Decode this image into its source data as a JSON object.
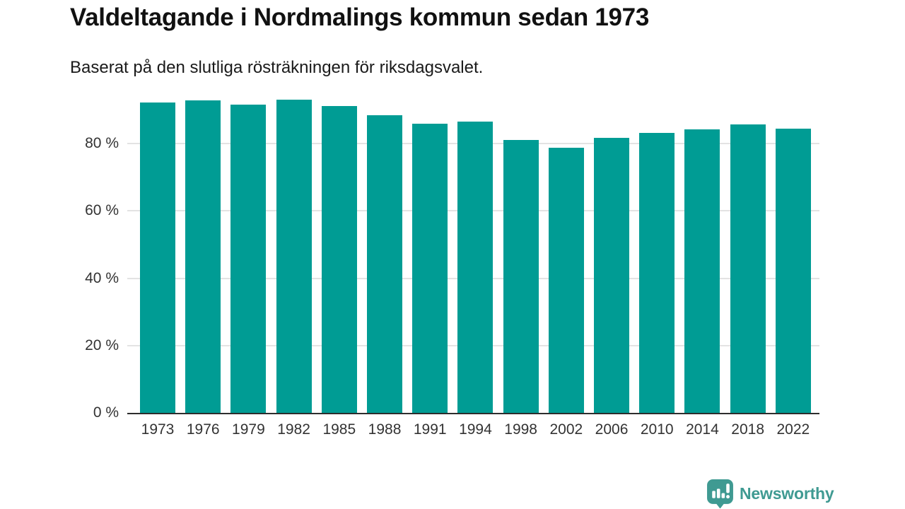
{
  "header": {
    "title": "Valdeltagande i Nordmalings kommun sedan 1973",
    "subtitle": "Baserat på den slutliga rösträkningen för riksdagsvalet."
  },
  "chart_data": {
    "type": "bar",
    "title": "Valdeltagande i Nordmalings kommun sedan 1973",
    "subtitle": "Baserat på den slutliga rösträkningen för riksdagsvalet.",
    "categories": [
      "1973",
      "1976",
      "1979",
      "1982",
      "1985",
      "1988",
      "1991",
      "1994",
      "1998",
      "2002",
      "2006",
      "2010",
      "2014",
      "2018",
      "2022"
    ],
    "values": [
      92.2,
      92.8,
      91.6,
      93.1,
      91.1,
      88.4,
      86.0,
      86.6,
      81.2,
      78.7,
      81.7,
      83.2,
      84.2,
      85.8,
      84.4
    ],
    "unit": "%",
    "xlabel": "",
    "ylabel": "",
    "ylim": [
      0,
      100
    ],
    "y_ticks": [
      {
        "label": "0 %",
        "value": 0
      },
      {
        "label": "20 %",
        "value": 20
      },
      {
        "label": "40 %",
        "value": 40
      },
      {
        "label": "60 %",
        "value": 60
      },
      {
        "label": "80 %",
        "value": 80
      }
    ],
    "grid": true,
    "legend": "none",
    "bar_color": "#009c94"
  },
  "branding": {
    "logo_text": "Newsworthy",
    "logo_icon": "speech-bubble-bar-chart-icon",
    "logo_color": "#3f9a92"
  },
  "colors": {
    "bar": "#009c94",
    "grid": "#e3e3e3",
    "axis": "#2d2d2d",
    "tick_text": "#333333",
    "title_text": "#111111",
    "logo": "#3f9a92"
  }
}
